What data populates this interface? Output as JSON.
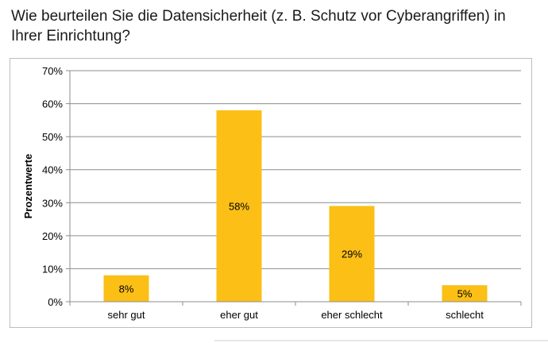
{
  "question": "Wie beurteilen Sie die Datensicherheit (z. B. Schutz vor Cyberangriffen) in Ihrer Einrichtung?",
  "chart_data": {
    "type": "bar",
    "categories": [
      "sehr gut",
      "eher gut",
      "eher schlecht",
      "schlecht"
    ],
    "values": [
      8,
      58,
      29,
      5
    ],
    "data_labels": [
      "8%",
      "58%",
      "29%",
      "5%"
    ],
    "ylabel": "Prozentwerte",
    "ylim": [
      0,
      70
    ],
    "yticks": [
      0,
      10,
      20,
      30,
      40,
      50,
      60,
      70
    ],
    "ytick_labels": [
      "0%",
      "10%",
      "20%",
      "30%",
      "40%",
      "50%",
      "60%",
      "70%"
    ],
    "grid": true,
    "legend": "none",
    "bar_color": "#FBBF16"
  }
}
